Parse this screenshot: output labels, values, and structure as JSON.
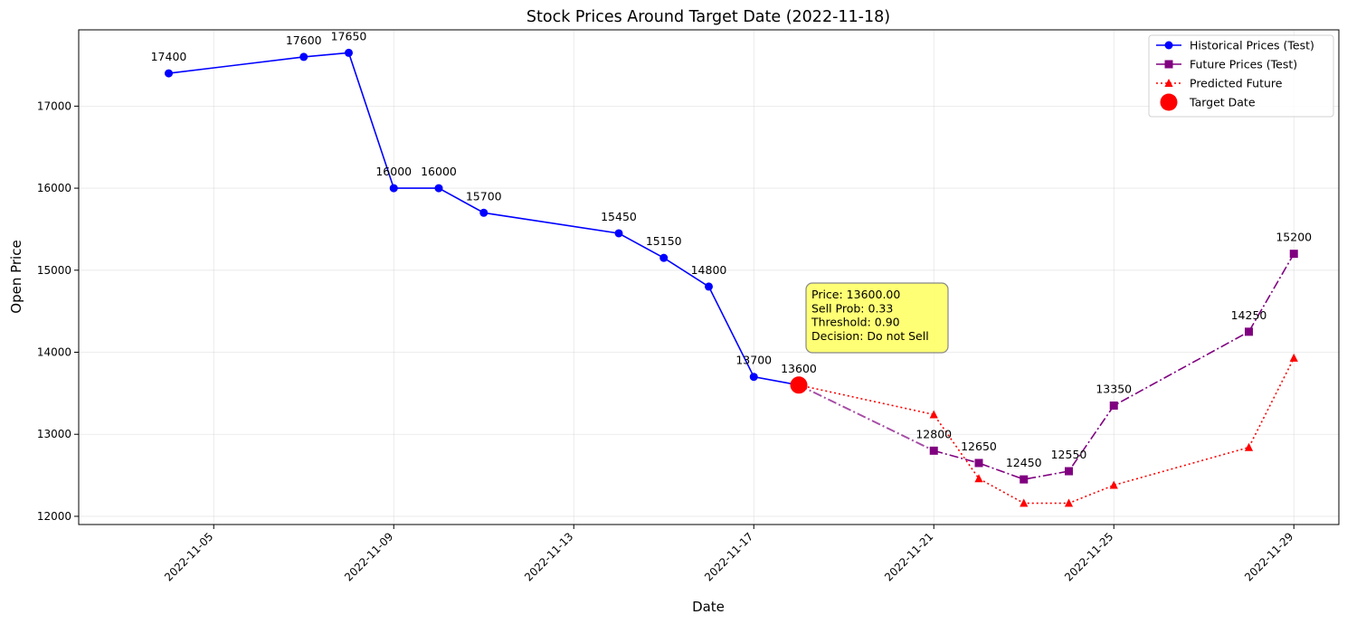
{
  "chart_data": {
    "type": "line",
    "title": "Stock Prices Around Target Date (2022-11-18)",
    "xlabel": "Date",
    "ylabel": "Open Price",
    "xlim": [
      "2022-11-02",
      "2022-11-30"
    ],
    "ylim": [
      11900,
      17930
    ],
    "x_ticks": [
      "2022-11-05",
      "2022-11-09",
      "2022-11-13",
      "2022-11-17",
      "2022-11-21",
      "2022-11-25",
      "2022-11-29"
    ],
    "y_ticks": [
      12000,
      13000,
      14000,
      15000,
      16000,
      17000
    ],
    "grid": true,
    "legend_position": "top-right",
    "series": [
      {
        "name": "Historical Prices (Test)",
        "color": "#0000ff",
        "marker": "circle",
        "line_style": "solid",
        "labeled": true,
        "points": [
          {
            "x": "2022-11-04",
            "y": 17400
          },
          {
            "x": "2022-11-07",
            "y": 17600
          },
          {
            "x": "2022-11-08",
            "y": 17650
          },
          {
            "x": "2022-11-09",
            "y": 16000
          },
          {
            "x": "2022-11-10",
            "y": 16000
          },
          {
            "x": "2022-11-11",
            "y": 15700
          },
          {
            "x": "2022-11-14",
            "y": 15450
          },
          {
            "x": "2022-11-15",
            "y": 15150
          },
          {
            "x": "2022-11-16",
            "y": 14800
          },
          {
            "x": "2022-11-17",
            "y": 13700
          },
          {
            "x": "2022-11-18",
            "y": 13600
          }
        ]
      },
      {
        "name": "Future Prices (Test)",
        "color": "#800080",
        "marker": "square",
        "line_style": "dashdot",
        "labeled": true,
        "points": [
          {
            "x": "2022-11-21",
            "y": 12800
          },
          {
            "x": "2022-11-22",
            "y": 12650
          },
          {
            "x": "2022-11-23",
            "y": 12450
          },
          {
            "x": "2022-11-24",
            "y": 12550
          },
          {
            "x": "2022-11-25",
            "y": 13350
          },
          {
            "x": "2022-11-28",
            "y": 14250
          },
          {
            "x": "2022-11-29",
            "y": 15200
          }
        ]
      },
      {
        "name": "Predicted Future",
        "color": "#ff0000",
        "marker": "triangle",
        "line_style": "dotted",
        "labeled": false,
        "points": [
          {
            "x": "2022-11-18",
            "y": 13600
          },
          {
            "x": "2022-11-21",
            "y": 13240
          },
          {
            "x": "2022-11-22",
            "y": 12460
          },
          {
            "x": "2022-11-23",
            "y": 12160
          },
          {
            "x": "2022-11-24",
            "y": 12160
          },
          {
            "x": "2022-11-25",
            "y": 12380
          },
          {
            "x": "2022-11-28",
            "y": 12840
          },
          {
            "x": "2022-11-29",
            "y": 13930
          }
        ]
      }
    ],
    "connector": {
      "color": "#800080",
      "line_style": "dashdot",
      "from": {
        "x": "2022-11-18",
        "y": 13600
      },
      "to": {
        "x": "2022-11-21",
        "y": 12800
      }
    },
    "target": {
      "name": "Target Date",
      "color": "#ff0000",
      "x": "2022-11-18",
      "y": 13600
    },
    "annotation": {
      "lines": [
        "Price: 13600.00",
        "Sell Prob: 0.33",
        "Threshold: 0.90",
        "Decision: Do not Sell"
      ],
      "background": "#ffff66"
    }
  }
}
